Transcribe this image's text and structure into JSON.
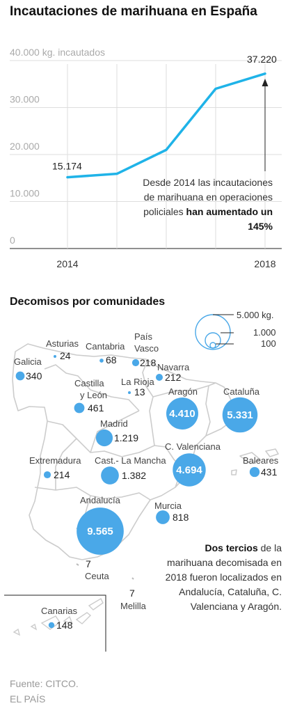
{
  "title": "Incautaciones de marihuana en España",
  "chart_data": {
    "type": "line",
    "title": "Incautaciones de marihuana en España",
    "ylabel": "kg. incautados",
    "x": [
      2014,
      2015,
      2016,
      2017,
      2018
    ],
    "x_tick_labels": [
      "2014",
      "2018"
    ],
    "y": [
      15174,
      15900,
      21000,
      34000,
      37220
    ],
    "ylim": [
      0,
      40000
    ],
    "y_ticks": [
      "0",
      "10.000",
      "20.000",
      "30.000",
      "40.000 kg. incautados"
    ],
    "data_labels": {
      "first": "15.174",
      "last": "37.220"
    },
    "grid": true,
    "color": "#1fb3e8"
  },
  "annotation": {
    "text": "Desde 2014 las incautaciones de marihuana en operaciones policiales",
    "bold": "han aumentado un 145%"
  },
  "map": {
    "title": "Decomisos por comunidades",
    "legend": {
      "values": [
        "5.000 kg.",
        "1.000",
        "100"
      ]
    },
    "regions": [
      {
        "name": "Asturias",
        "value": "24"
      },
      {
        "name": "Cantabria",
        "value": "68"
      },
      {
        "name": "País Vasco",
        "value": "218"
      },
      {
        "name": "Galicia",
        "value": "340"
      },
      {
        "name": "Navarra",
        "value": "212"
      },
      {
        "name": "La Rioja",
        "value": "13"
      },
      {
        "name": "Castilla y León",
        "value": "461"
      },
      {
        "name": "Aragón",
        "value": "4.410"
      },
      {
        "name": "Cataluña",
        "value": "5.331"
      },
      {
        "name": "Madrid",
        "value": "1.219"
      },
      {
        "name": "Extremadura",
        "value": "214"
      },
      {
        "name": "Cast.- La Mancha",
        "value": "1.382"
      },
      {
        "name": "C. Valenciana",
        "value": "4.694"
      },
      {
        "name": "Baleares",
        "value": "431"
      },
      {
        "name": "Murcia",
        "value": "818"
      },
      {
        "name": "Andalucía",
        "value": "9.565"
      },
      {
        "name": "Ceuta",
        "value": "7"
      },
      {
        "name": "Melilla",
        "value": "7"
      },
      {
        "name": "Canarias",
        "value": "148"
      }
    ],
    "note": {
      "bold": "Dos tercios",
      "text": "de la marihuana decomisada en 2018 fueron localizados en Andalucía, Cataluña, C. Valenciana y Aragón."
    },
    "color": "#4aa8e8"
  },
  "source": "Fuente: CITCO.",
  "publisher": "EL PAÍS"
}
